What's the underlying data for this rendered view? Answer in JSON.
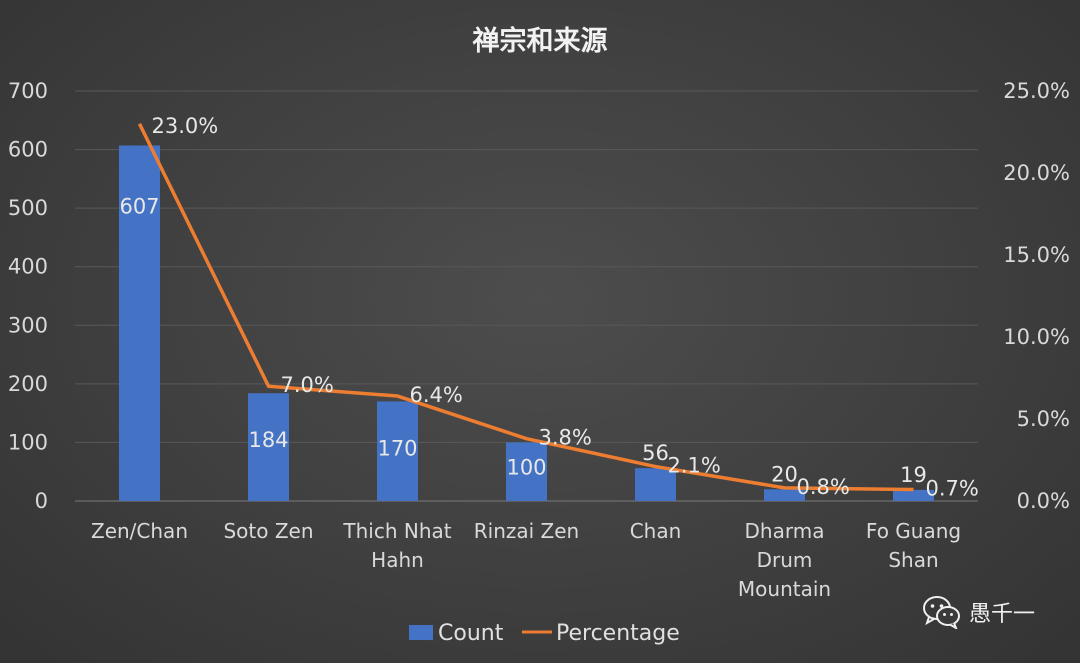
{
  "chart_data": {
    "type": "bar",
    "title": "禅宗和来源",
    "categories": [
      [
        "Zen/Chan"
      ],
      [
        "Soto Zen"
      ],
      [
        "Thich Nhat",
        "Hahn"
      ],
      [
        "Rinzai Zen"
      ],
      [
        "Chan"
      ],
      [
        "Dharma",
        "Drum",
        "Mountain"
      ],
      [
        "Fo Guang",
        "Shan"
      ]
    ],
    "series": [
      {
        "name": "Count",
        "kind": "bar",
        "axis": "left",
        "color": "#4472C4",
        "values": [
          607,
          184,
          170,
          100,
          56,
          20,
          19
        ],
        "labels": [
          "607",
          "184",
          "170",
          "100",
          "56",
          "20",
          "19"
        ]
      },
      {
        "name": "Percentage",
        "kind": "line",
        "axis": "right",
        "color": "#ED7D31",
        "values": [
          23.0,
          7.0,
          6.4,
          3.8,
          2.1,
          0.8,
          0.7
        ],
        "labels": [
          "23.0%",
          "7.0%",
          "6.4%",
          "3.8%",
          "2.1%",
          "0.8%",
          "0.7%"
        ]
      }
    ],
    "y_left": {
      "min": 0,
      "max": 700,
      "ticks": [
        "0",
        "100",
        "200",
        "300",
        "400",
        "500",
        "600",
        "700"
      ]
    },
    "y_right": {
      "min": 0,
      "max": 25,
      "ticks": [
        "0.0%",
        "5.0%",
        "10.0%",
        "15.0%",
        "20.0%",
        "25.0%"
      ]
    },
    "grid": true,
    "legend": "bottom"
  },
  "watermark": {
    "text": "愚千一",
    "icon": "wechat-icon"
  }
}
